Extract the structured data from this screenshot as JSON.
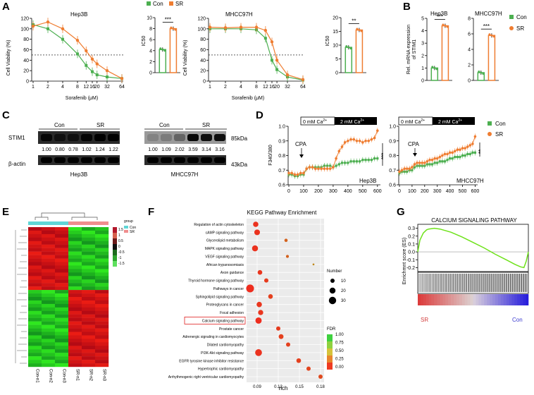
{
  "colors": {
    "con": "#4caf50",
    "sr": "#ef7d31",
    "blot": "#1a1a1a"
  },
  "panels": {
    "A": {
      "label": "A",
      "legend": [
        "Con",
        "SR"
      ],
      "hep3b": {
        "title": "Hep3B",
        "ylabel": "Cell Viability (%)",
        "xlabel": "Sorafenib (μM)",
        "xticks": [
          "1",
          "2",
          "4",
          "8",
          "12",
          "16",
          "20",
          "32",
          "64"
        ],
        "yticks": [
          "0",
          "20",
          "40",
          "60",
          "80",
          "100",
          "120"
        ]
      },
      "mhcc": {
        "title": "MHCC97H",
        "ylabel": "Cell Viability (%)",
        "xlabel": "Sorafenib (μM)",
        "xticks": [
          "1",
          "2",
          "4",
          "8",
          "12",
          "16",
          "20",
          "32",
          "64"
        ],
        "yticks": [
          "0",
          "20",
          "40",
          "60",
          "80",
          "100",
          "120"
        ]
      },
      "ic50_hep": {
        "ylabel": "IC50",
        "yticks": [
          "0",
          "2",
          "4",
          "6",
          "8",
          "10"
        ],
        "sig": "***"
      },
      "ic50_mhcc": {
        "ylabel": "IC50",
        "yticks": [
          "0",
          "5",
          "10",
          "15",
          "20"
        ],
        "sig": "**"
      }
    },
    "B": {
      "label": "B",
      "ylabel1": "Rel. mRNA expression",
      "ylabel2": "of STIM1",
      "hep_title": "Hep3B",
      "mhcc_title": "MHCC97H",
      "hep_yticks": [
        "0",
        "1",
        "2",
        "3",
        "4",
        "5"
      ],
      "mhcc_yticks": [
        "0",
        "2",
        "4",
        "6",
        "8"
      ],
      "sig": "***",
      "legend": [
        "Con",
        "SR"
      ]
    },
    "C": {
      "label": "C",
      "rows": [
        "STIM1",
        "β-actin"
      ],
      "group_con": "Con",
      "group_sr": "SR",
      "kda1": "85kDa",
      "kda2": "43kDa",
      "hep_values": [
        "1.00",
        "0.80",
        "0.78",
        "1.02",
        "1.24",
        "1.22"
      ],
      "mhcc_values": [
        "1.00",
        "1.09",
        "2.02",
        "3.59",
        "3.14",
        "3.16"
      ],
      "hep_name": "Hep3B",
      "mhcc_name": "MHCC97H"
    },
    "D": {
      "label": "D",
      "ylabel": "F340/380",
      "zero_ca": "0 mM Ca",
      "two_ca": "2 mM Ca",
      "sup": "2+",
      "cpa": "CPA",
      "hep_name": "Hep3B",
      "mhcc_name": "MHCC97H",
      "xticks": [
        "0",
        "100",
        "200",
        "300",
        "400",
        "500",
        "600"
      ],
      "yticks": [
        "0.6",
        "0.7",
        "0.8",
        "0.9",
        "1.0"
      ],
      "sig_hep": "***",
      "sig_mhcc": "**",
      "legend": [
        "Con",
        "SR"
      ]
    },
    "E": {
      "label": "E",
      "legend_title": "group",
      "legend_items": [
        "Con",
        "SR"
      ],
      "scale": [
        "1.5",
        "1",
        "0.5",
        "0",
        "-0.5",
        "-1",
        "-1.5"
      ],
      "samples": [
        "Con-n1",
        "Con-n2",
        "Con-n3",
        "SR-n1",
        "SR-n2",
        "SR-n3"
      ]
    },
    "F": {
      "label": "F",
      "title": "KEGG Pathway Enrichment",
      "xlabel": "rich",
      "xticks": [
        "0.09",
        "0.12",
        "0.15",
        "0.18"
      ],
      "size_title": "Number",
      "sizes": [
        "10",
        "20",
        "30"
      ],
      "fdr_title": "FDR",
      "fdr_ticks": [
        "1.00",
        "0.75",
        "0.50",
        "0.25",
        "0.00"
      ],
      "highlight": "Calcium signaling pathway",
      "pathways": [
        "Regulation of actin cytoskeleton",
        "cAMP signaling pathway",
        "Glycerolipid metabolism",
        "MAPK signaling pathway",
        "VEGF signaling pathway",
        "African trypanosomiasis",
        "Axon guidance",
        "Thyroid hormone signaling pathway",
        "Pathways in cancer",
        "Sphingolipid signaling pathway",
        "Proteoglycans in cancer",
        "Focal adhesion",
        "Calcium signaling pathway",
        "Prostate cancer",
        "Adrenergic signaling in cardiomyocytes",
        "Dilated cardiomyopathy",
        "PI3K-Akt signaling pathway",
        "EGFR tyrosine kinase inhibitor resistance",
        "Hypertrophic cardiomyopathy",
        "Arrhythmogenic right ventricular cardiomyopathy"
      ]
    },
    "G": {
      "label": "G",
      "title": "CALCIUM SIGNALING PATHWAY",
      "ylabel": "Enrichmnt score (ES)",
      "yticks": [
        "0.3",
        "0.2",
        "0.1",
        "0.0",
        "-0.1",
        "-0.2"
      ],
      "left": "SR",
      "right": "Con"
    }
  },
  "chart_data": [
    {
      "type": "line",
      "title": "Hep3B",
      "xlabel": "Sorafenib (μM)",
      "ylabel": "Cell Viability (%)",
      "x": [
        1,
        2,
        4,
        8,
        12,
        16,
        20,
        32,
        64
      ],
      "ylim": [
        0,
        120
      ],
      "series": [
        {
          "name": "Con",
          "values": [
            108,
            100,
            80,
            52,
            30,
            18,
            12,
            8,
            5
          ]
        },
        {
          "name": "SR",
          "values": [
            105,
            113,
            100,
            78,
            58,
            42,
            33,
            20,
            5
          ]
        }
      ]
    },
    {
      "type": "bar",
      "title": "Hep3B IC50",
      "categories": [
        "Con",
        "SR"
      ],
      "values": [
        4.2,
        8.0
      ],
      "ylim": [
        0,
        10
      ],
      "ylabel": "IC50"
    },
    {
      "type": "line",
      "title": "MHCC97H",
      "xlabel": "Sorafenib (μM)",
      "ylabel": "Cell Viability (%)",
      "x": [
        1,
        2,
        4,
        8,
        12,
        16,
        20,
        32,
        64
      ],
      "ylim": [
        0,
        120
      ],
      "series": [
        {
          "name": "Con",
          "values": [
            100,
            100,
            100,
            98,
            82,
            40,
            22,
            8,
            2
          ]
        },
        {
          "name": "SR",
          "values": [
            103,
            102,
            103,
            103,
            97,
            75,
            40,
            12,
            3
          ]
        }
      ]
    },
    {
      "type": "bar",
      "title": "MHCC97H IC50",
      "categories": [
        "Con",
        "SR"
      ],
      "values": [
        9.2,
        15.5
      ],
      "ylim": [
        0,
        20
      ],
      "ylabel": "IC50"
    },
    {
      "type": "bar",
      "title": "Hep3B STIM1 mRNA",
      "categories": [
        "Con",
        "SR"
      ],
      "values": [
        1.0,
        4.4
      ],
      "ylim": [
        0,
        5
      ]
    },
    {
      "type": "bar",
      "title": "MHCC97H STIM1 mRNA",
      "categories": [
        "Con",
        "SR"
      ],
      "values": [
        1.0,
        5.8
      ],
      "ylim": [
        0,
        8
      ]
    },
    {
      "type": "line",
      "title": "Hep3B",
      "xlabel": "Time (s)",
      "ylabel": "F340/380",
      "x": [
        0,
        20,
        40,
        60,
        80,
        100,
        120,
        140,
        160,
        180,
        200,
        220,
        240,
        260,
        280,
        300,
        320,
        340,
        360,
        380,
        400,
        420,
        440,
        460,
        480,
        500,
        520,
        540,
        560,
        580,
        600
      ],
      "ylim": [
        0.6,
        1.0
      ],
      "series": [
        {
          "name": "Con",
          "values": [
            0.67,
            0.67,
            0.66,
            0.66,
            0.67,
            0.67,
            0.71,
            0.72,
            0.72,
            0.72,
            0.72,
            0.72,
            0.73,
            0.73,
            0.73,
            0.72,
            0.73,
            0.74,
            0.75,
            0.75,
            0.75,
            0.76,
            0.76,
            0.76,
            0.76,
            0.77,
            0.77,
            0.77,
            0.77,
            0.78,
            0.78
          ]
        },
        {
          "name": "SR",
          "values": [
            0.68,
            0.68,
            0.67,
            0.67,
            0.68,
            0.68,
            0.71,
            0.72,
            0.72,
            0.71,
            0.71,
            0.71,
            0.71,
            0.71,
            0.71,
            0.72,
            0.78,
            0.83,
            0.86,
            0.89,
            0.9,
            0.91,
            0.91,
            0.9,
            0.9,
            0.89,
            0.9,
            0.9,
            0.91,
            0.92,
            0.97
          ]
        }
      ]
    },
    {
      "type": "line",
      "title": "MHCC97H",
      "xlabel": "Time (s)",
      "ylabel": "F340/380",
      "x": [
        0,
        20,
        40,
        60,
        80,
        100,
        120,
        140,
        160,
        180,
        200,
        220,
        240,
        260,
        280,
        300,
        320,
        340,
        360,
        380,
        400,
        420,
        440,
        460,
        480,
        500,
        520,
        540,
        560,
        580,
        600
      ],
      "ylim": [
        0.6,
        1.0
      ],
      "series": [
        {
          "name": "Con",
          "values": [
            0.68,
            0.69,
            0.69,
            0.69,
            0.7,
            0.7,
            0.72,
            0.73,
            0.73,
            0.73,
            0.73,
            0.74,
            0.74,
            0.74,
            0.75,
            0.75,
            0.76,
            0.76,
            0.76,
            0.77,
            0.78,
            0.78,
            0.79,
            0.79,
            0.79,
            0.8,
            0.8,
            0.81,
            0.81,
            0.82,
            0.82
          ]
        },
        {
          "name": "SR",
          "values": [
            0.69,
            0.7,
            0.71,
            0.71,
            0.71,
            0.72,
            0.74,
            0.75,
            0.75,
            0.75,
            0.75,
            0.76,
            0.77,
            0.77,
            0.78,
            0.78,
            0.79,
            0.8,
            0.81,
            0.81,
            0.82,
            0.82,
            0.83,
            0.84,
            0.84,
            0.85,
            0.85,
            0.86,
            0.87,
            0.88,
            0.93
          ]
        }
      ]
    },
    {
      "type": "scatter",
      "title": "KEGG Pathway Enrichment",
      "xlabel": "rich",
      "xlim": [
        0.075,
        0.185
      ],
      "categories": [
        "Regulation of actin cytoskeleton",
        "cAMP signaling pathway",
        "Glycerolipid metabolism",
        "MAPK signaling pathway",
        "VEGF signaling pathway",
        "African trypanosomiasis",
        "Axon guidance",
        "Thyroid hormone signaling pathway",
        "Pathways in cancer",
        "Sphingolipid signaling pathway",
        "Proteoglycans in cancer",
        "Focal adhesion",
        "Calcium signaling pathway",
        "Prostate cancer",
        "Adrenergic signaling in cardiomyocytes",
        "Dilated cardiomyopathy",
        "PI3K-Akt signaling pathway",
        "EGFR tyrosine kinase inhibitor resistance",
        "Hypertrophic cardiomyopathy",
        "Arrhythmogenic right ventricular cardiomyopathy"
      ],
      "rich": [
        0.088,
        0.09,
        0.131,
        0.087,
        0.133,
        0.17,
        0.094,
        0.103,
        0.08,
        0.109,
        0.093,
        0.095,
        0.092,
        0.12,
        0.124,
        0.134,
        0.092,
        0.149,
        0.163,
        0.18
      ],
      "number": [
        16,
        18,
        6,
        20,
        5,
        2,
        12,
        10,
        34,
        12,
        16,
        15,
        22,
        10,
        13,
        10,
        26,
        12,
        10,
        10
      ],
      "fdr": [
        0.02,
        0.02,
        0.12,
        0.02,
        0.12,
        0.2,
        0.03,
        0.04,
        0.01,
        0.05,
        0.03,
        0.03,
        0.01,
        0.04,
        0.05,
        0.05,
        0.02,
        0.05,
        0.06,
        0.07
      ]
    },
    {
      "type": "line",
      "title": "CALCIUM SIGNALING PATHWAY",
      "ylabel": "Enrichmnt score (ES)",
      "ylim": [
        -0.25,
        0.35
      ],
      "x": [
        0,
        0.02,
        0.05,
        0.08,
        0.1,
        0.15,
        0.2,
        0.3,
        0.4,
        0.5,
        0.6,
        0.7,
        0.8,
        0.88,
        0.93,
        0.96,
        0.98,
        1.0
      ],
      "values": [
        0.0,
        0.15,
        0.24,
        0.28,
        0.29,
        0.3,
        0.29,
        0.25,
        0.19,
        0.12,
        0.05,
        -0.03,
        -0.1,
        -0.16,
        -0.19,
        -0.2,
        -0.12,
        0.0
      ]
    }
  ]
}
